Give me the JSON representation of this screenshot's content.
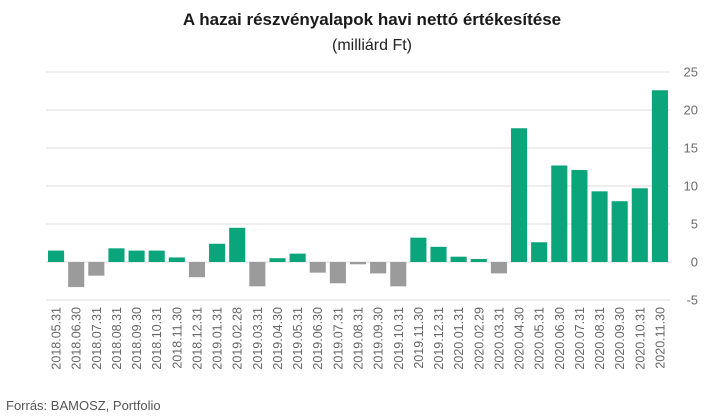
{
  "chart_data": {
    "type": "bar",
    "title": "A hazai részvényalapok havi nettó értékesítése",
    "subtitle": "(milliárd Ft)",
    "source": "Forrás: BAMOSZ, Portfolio",
    "ylim": [
      -5,
      25
    ],
    "yticks": [
      -5,
      0,
      5,
      10,
      15,
      20,
      25
    ],
    "grid": true,
    "positive_color": "#0aa57a",
    "negative_color": "#9b9b9b",
    "categories": [
      "2018.05.31",
      "2018.06.30",
      "2018.07.31",
      "2018.08.31",
      "2018.09.30",
      "2018.10.31",
      "2018.11.30",
      "2018.12.31",
      "2019.01.31",
      "2019.02.28",
      "2019.03.31",
      "2019.04.30",
      "2019.05.31",
      "2019.06.30",
      "2019.07.31",
      "2019.08.31",
      "2019.09.30",
      "2019.10.31",
      "2019.11.30",
      "2019.12.31",
      "2020.01.31",
      "2020.02.29",
      "2020.03.31",
      "2020.04.30",
      "2020.05.31",
      "2020.06.30",
      "2020.07.31",
      "2020.08.31",
      "2020.09.30",
      "2020.10.31",
      "2020.11.30"
    ],
    "values": [
      1.5,
      -3.3,
      -1.8,
      1.8,
      1.5,
      1.5,
      0.6,
      -2.0,
      2.4,
      4.5,
      -3.2,
      0.5,
      1.1,
      -1.4,
      -2.8,
      -0.3,
      -1.5,
      -3.2,
      3.2,
      2.0,
      0.7,
      0.4,
      -1.5,
      17.6,
      2.6,
      12.7,
      12.1,
      9.3,
      8.0,
      9.7,
      22.6
    ]
  }
}
